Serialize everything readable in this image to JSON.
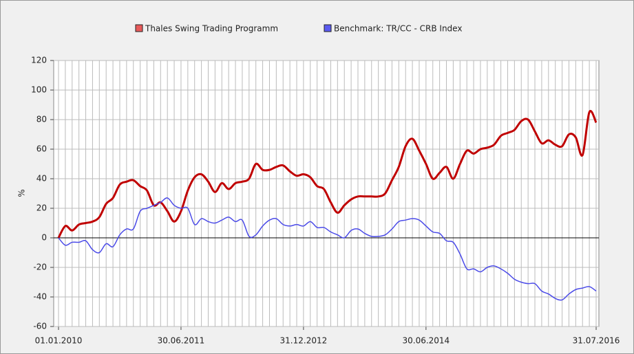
{
  "chart_data": {
    "type": "line",
    "ylabel": "%",
    "categories": [
      "01.01.2010",
      null,
      null,
      null,
      null,
      null,
      null,
      null,
      null,
      null,
      null,
      null,
      null,
      null,
      null,
      null,
      null,
      null,
      "30.06.2011",
      null,
      null,
      null,
      null,
      null,
      null,
      null,
      null,
      null,
      null,
      null,
      null,
      null,
      null,
      null,
      null,
      null,
      "31.12.2012",
      null,
      null,
      null,
      null,
      null,
      null,
      null,
      null,
      null,
      null,
      null,
      null,
      null,
      null,
      null,
      null,
      null,
      "30.06.2014",
      null,
      null,
      null,
      null,
      null,
      null,
      null,
      null,
      null,
      null,
      null,
      null,
      null,
      null,
      null,
      null,
      null,
      null,
      null,
      null,
      null,
      null,
      null,
      null,
      "31.07.2016"
    ],
    "series": [
      {
        "name": "Thales Swing Trading Programm",
        "color": "#c00000",
        "values": [
          0,
          8,
          5,
          9,
          10,
          11,
          14,
          23,
          27,
          36,
          38,
          39,
          35,
          32,
          22,
          24,
          18,
          11,
          18,
          32,
          41,
          43,
          38,
          31,
          37,
          33,
          37,
          38,
          40,
          50,
          46,
          46,
          48,
          49,
          45,
          42,
          43,
          41,
          35,
          33,
          24,
          17,
          22,
          26,
          28,
          28,
          28,
          28,
          30,
          39,
          48,
          62,
          67,
          59,
          50,
          40,
          44,
          48,
          40,
          50,
          59,
          57,
          60,
          61,
          63,
          69,
          71,
          73,
          79,
          80,
          72,
          64,
          66,
          63,
          62,
          70,
          68,
          56,
          85,
          78
        ]
      },
      {
        "name": "Benchmark: TR/CC - CRB Index",
        "color": "#4a4ae8",
        "values": [
          0,
          -5,
          -3,
          -3,
          -2,
          -8,
          -10,
          -4,
          -6,
          2,
          6,
          6,
          18,
          20,
          22,
          24,
          27,
          22,
          20,
          20,
          9,
          13,
          11,
          10,
          12,
          14,
          11,
          12,
          1,
          2,
          8,
          12,
          13,
          9,
          8,
          9,
          8,
          11,
          7,
          7,
          4,
          2,
          0,
          5,
          6,
          3,
          1,
          1,
          2,
          6,
          11,
          12,
          13,
          12,
          8,
          4,
          3,
          -2,
          -3,
          -11,
          -21,
          -21,
          -23,
          -20,
          -19,
          -21,
          -24,
          -28,
          -30,
          -31,
          -31,
          -36,
          -38,
          -41,
          -42,
          -38,
          -35,
          -34,
          -33,
          -36
        ]
      }
    ],
    "ylim": [
      -60,
      120
    ],
    "yticks": [
      -60,
      -40,
      -20,
      0,
      20,
      40,
      60,
      80,
      100,
      120
    ],
    "grid": true,
    "legend": "top"
  }
}
